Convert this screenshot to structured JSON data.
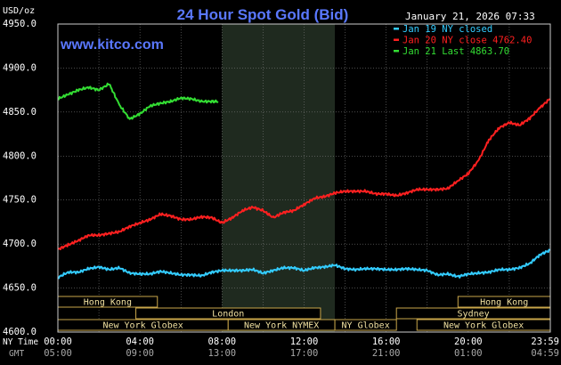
{
  "chart_data": {
    "type": "line",
    "title": "24 Hour Spot Gold (Bid)",
    "subtitle": "www.kitco.com",
    "date_time": "January 21, 2026 07:33",
    "ylabel": "USD/oz",
    "ylim": [
      4600,
      4950
    ],
    "y_ticks": [
      "4600.0",
      "4650.0",
      "4700.0",
      "4750.0",
      "4800.0",
      "4850.0",
      "4900.0",
      "4950.0"
    ],
    "x_tick_labels_ny": [
      "00:00",
      "04:00",
      "08:00",
      "12:00",
      "16:00",
      "20:00",
      "23:59"
    ],
    "x_tick_labels_gmt": [
      "05:00",
      "09:00",
      "13:00",
      "17:00",
      "21:00",
      "01:00",
      "04:59"
    ],
    "row_labels": {
      "ny": "NY Time",
      "gmt": "GMT"
    },
    "shaded_session_hours": [
      8.0,
      13.5
    ],
    "legend": [
      {
        "text": "Jan 19 NY closed",
        "color": "#33ccff"
      },
      {
        "text": "Jan 20 NY close 4762.40",
        "color": "#ff2020"
      },
      {
        "text": "Jan 21 Last 4863.70",
        "color": "#33dd33"
      }
    ],
    "series": [
      {
        "name": "Jan 19",
        "color": "#33ccff",
        "points": [
          [
            0,
            4662
          ],
          [
            0.5,
            4668
          ],
          [
            1,
            4668
          ],
          [
            1.5,
            4672
          ],
          [
            2,
            4674
          ],
          [
            2.5,
            4671
          ],
          [
            3,
            4673
          ],
          [
            3.5,
            4667
          ],
          [
            4,
            4666
          ],
          [
            4.5,
            4666
          ],
          [
            5,
            4669
          ],
          [
            5.5,
            4667
          ],
          [
            6,
            4665
          ],
          [
            6.5,
            4665
          ],
          [
            7,
            4664
          ],
          [
            7.5,
            4668
          ],
          [
            8,
            4670
          ],
          [
            8.5,
            4670
          ],
          [
            9,
            4670
          ],
          [
            9.5,
            4671
          ],
          [
            10,
            4667
          ],
          [
            10.5,
            4670
          ],
          [
            11,
            4673
          ],
          [
            11.5,
            4673
          ],
          [
            12,
            4670
          ],
          [
            12.5,
            4673
          ],
          [
            13,
            4674
          ],
          [
            13.5,
            4676
          ],
          [
            14,
            4672
          ],
          [
            14.5,
            4671
          ],
          [
            15,
            4672
          ],
          [
            15.5,
            4672
          ],
          [
            16,
            4671
          ],
          [
            16.5,
            4671
          ],
          [
            17,
            4672
          ],
          [
            17.5,
            4671
          ],
          [
            18,
            4670
          ],
          [
            18.5,
            4665
          ],
          [
            19,
            4666
          ],
          [
            19.5,
            4663
          ],
          [
            20,
            4666
          ],
          [
            20.5,
            4667
          ],
          [
            21,
            4668
          ],
          [
            21.5,
            4671
          ],
          [
            22,
            4671
          ],
          [
            22.5,
            4673
          ],
          [
            23,
            4678
          ],
          [
            23.5,
            4688
          ],
          [
            23.98,
            4693
          ]
        ]
      },
      {
        "name": "Jan 20",
        "color": "#ff2020",
        "points": [
          [
            0,
            4694
          ],
          [
            0.5,
            4699
          ],
          [
            1,
            4704
          ],
          [
            1.5,
            4710
          ],
          [
            2,
            4710
          ],
          [
            2.5,
            4712
          ],
          [
            3,
            4714
          ],
          [
            3.5,
            4720
          ],
          [
            4,
            4724
          ],
          [
            4.5,
            4728
          ],
          [
            5,
            4734
          ],
          [
            5.5,
            4732
          ],
          [
            6,
            4728
          ],
          [
            6.5,
            4728
          ],
          [
            7,
            4731
          ],
          [
            7.5,
            4730
          ],
          [
            8,
            4724
          ],
          [
            8.5,
            4730
          ],
          [
            9,
            4738
          ],
          [
            9.5,
            4742
          ],
          [
            10,
            4738
          ],
          [
            10.5,
            4730
          ],
          [
            11,
            4736
          ],
          [
            11.5,
            4738
          ],
          [
            12,
            4745
          ],
          [
            12.5,
            4752
          ],
          [
            13,
            4754
          ],
          [
            13.5,
            4758
          ],
          [
            14,
            4760
          ],
          [
            14.5,
            4760
          ],
          [
            15,
            4760
          ],
          [
            15.5,
            4757
          ],
          [
            16,
            4757
          ],
          [
            16.5,
            4755
          ],
          [
            17,
            4758
          ],
          [
            17.5,
            4762
          ],
          [
            18,
            4762
          ],
          [
            18.5,
            4762
          ],
          [
            19,
            4763
          ],
          [
            19.5,
            4772
          ],
          [
            20,
            4780
          ],
          [
            20.5,
            4795
          ],
          [
            21,
            4818
          ],
          [
            21.5,
            4832
          ],
          [
            22,
            4838
          ],
          [
            22.5,
            4835
          ],
          [
            23,
            4843
          ],
          [
            23.5,
            4855
          ],
          [
            23.98,
            4865
          ]
        ]
      },
      {
        "name": "Jan 21",
        "color": "#33dd33",
        "points": [
          [
            0,
            4865
          ],
          [
            0.5,
            4870
          ],
          [
            1,
            4875
          ],
          [
            1.5,
            4878
          ],
          [
            2,
            4875
          ],
          [
            2.5,
            4882
          ],
          [
            3,
            4858
          ],
          [
            3.5,
            4842
          ],
          [
            4,
            4848
          ],
          [
            4.5,
            4857
          ],
          [
            5,
            4860
          ],
          [
            5.5,
            4862
          ],
          [
            6,
            4866
          ],
          [
            6.5,
            4865
          ],
          [
            7,
            4862
          ],
          [
            7.5,
            4862
          ],
          [
            7.8,
            4862
          ]
        ]
      }
    ],
    "sessions": [
      {
        "label": "Hong Kong",
        "row": 1,
        "start": 0,
        "end": 4.85
      },
      {
        "label": "London",
        "row": 2,
        "start": 3.8,
        "end": 12.8
      },
      {
        "label": "New York Globex",
        "row": 3,
        "start": 0,
        "end": 8.3
      },
      {
        "label": "New York NYMEX",
        "row": 3,
        "start": 8.3,
        "end": 13.5
      },
      {
        "label": "NY Globex",
        "row": 3,
        "start": 13.5,
        "end": 16.5
      },
      {
        "label": "Hong Kong",
        "row": 1,
        "start": 19.5,
        "end": 24
      },
      {
        "label": "Sydney",
        "row": 2,
        "start": 16.5,
        "end": 24
      },
      {
        "label": "New York Globex",
        "row": 3,
        "start": 17.5,
        "end": 24
      }
    ],
    "colors": {
      "background": "#000000",
      "grid": "#777777",
      "frame": "#cccccc",
      "title": "#5a78ff",
      "axis_text": "#ffffff",
      "gmt_text": "#a8a8a8",
      "shade": "#1f2a1f",
      "session_border": "#c9a64a",
      "session_text": "#f0e0a0"
    }
  }
}
